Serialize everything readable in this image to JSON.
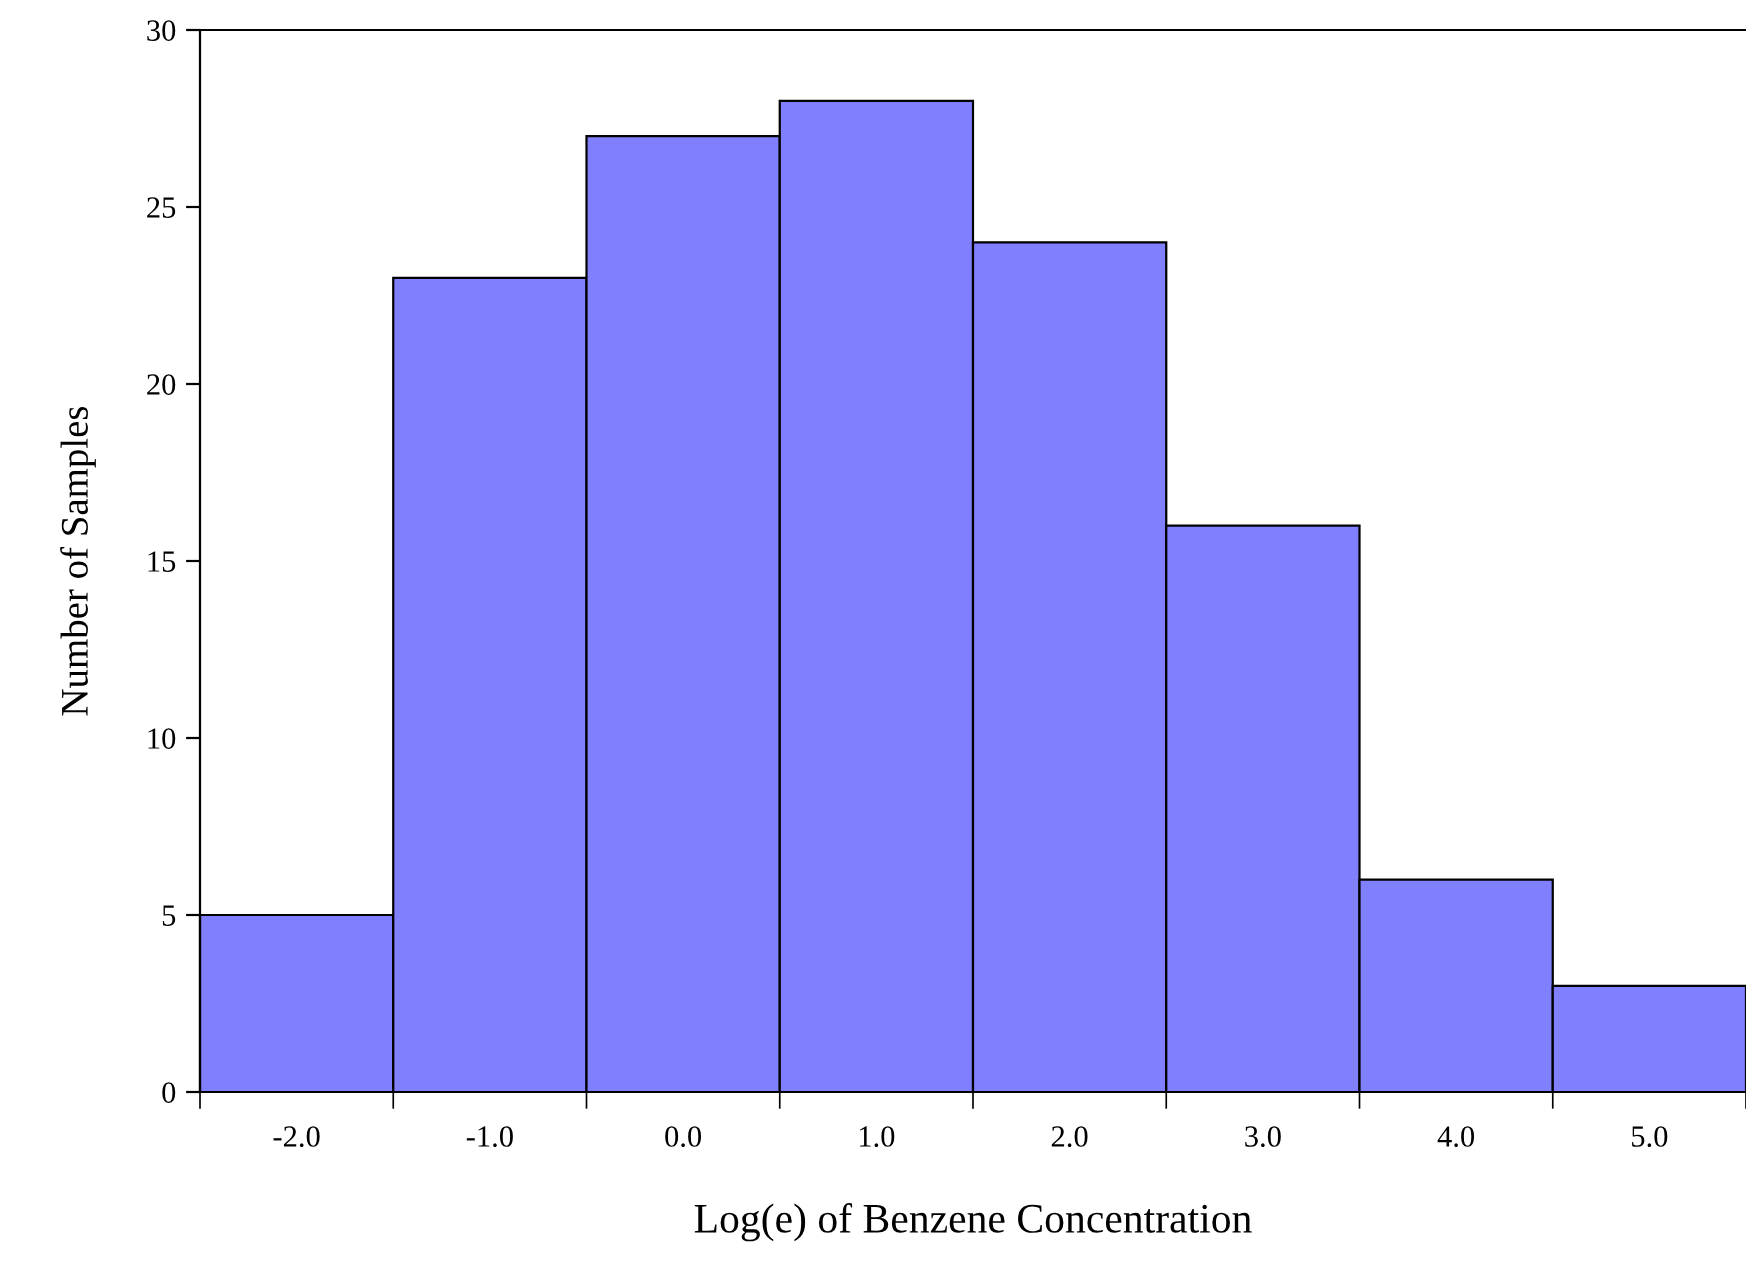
{
  "chart_data": {
    "type": "histogram",
    "xlabel": "Log(e) of Benzene Concentration",
    "ylabel": "Number of Samples",
    "bins": [
      -2.5,
      -1.5,
      -0.5,
      0.5,
      1.5,
      2.5,
      3.5,
      4.5,
      5.5
    ],
    "values": [
      5,
      23,
      27,
      28,
      24,
      16,
      6,
      3
    ],
    "color": "#8080ff",
    "xlim": [
      -2.5,
      5.5
    ],
    "xticks": [
      {
        "value": -2,
        "label": "-2.0"
      },
      {
        "value": -1,
        "label": "-1.0"
      },
      {
        "value": 0,
        "label": "0.0"
      },
      {
        "value": 1,
        "label": "1.0"
      },
      {
        "value": 2,
        "label": "2.0"
      },
      {
        "value": 3,
        "label": "3.0"
      },
      {
        "value": 4,
        "label": "4.0"
      },
      {
        "value": 5,
        "label": "5.0"
      }
    ],
    "ylim": [
      0,
      30
    ],
    "yticks": [
      0,
      5,
      10,
      15,
      20,
      25,
      30
    ],
    "grid": false,
    "legend": false
  }
}
